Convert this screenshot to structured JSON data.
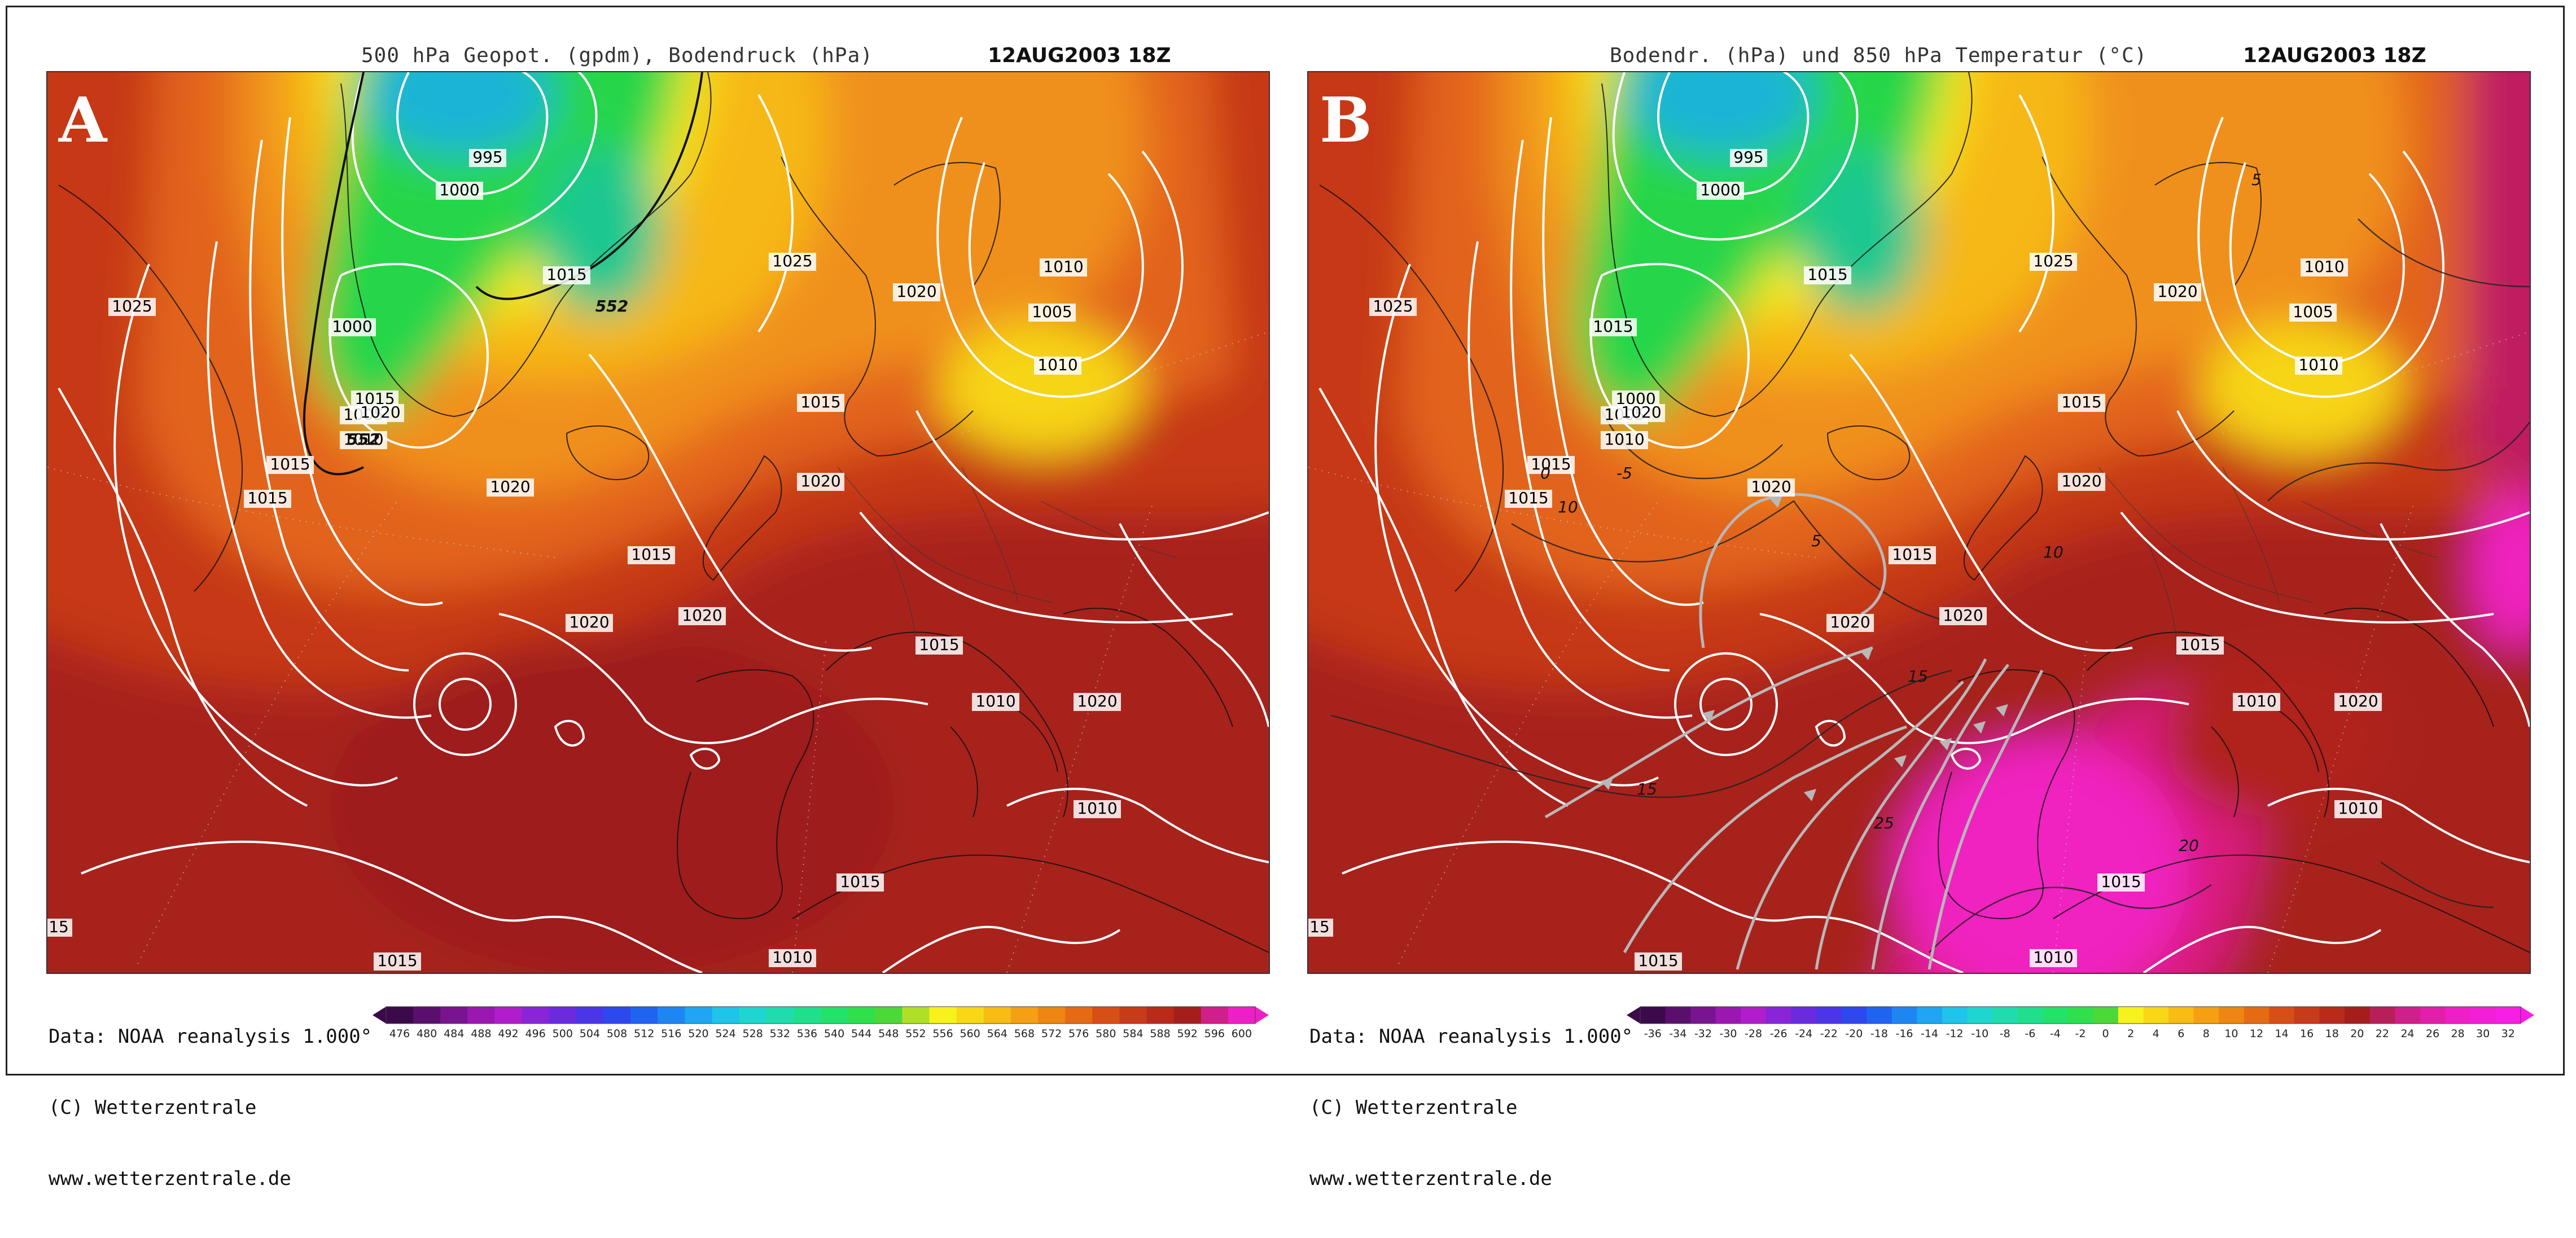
{
  "panels": [
    {
      "letter": "A",
      "title": "500 hPa Geopot. (gpdm), Bodendruck (hPa)",
      "timestamp": "12AUG2003 18Z",
      "credit_lines": [
        "Data: NOAA reanalysis 1.000°",
        "(C) Wetterzentrale",
        "www.wetterzentrale.de"
      ],
      "colorbar": {
        "ticks": [
          "476",
          "480",
          "484",
          "488",
          "492",
          "496",
          "500",
          "504",
          "508",
          "512",
          "516",
          "520",
          "524",
          "528",
          "532",
          "536",
          "540",
          "544",
          "548",
          "552",
          "556",
          "560",
          "564",
          "568",
          "572",
          "576",
          "580",
          "584",
          "588",
          "592",
          "596",
          "600"
        ],
        "colors": [
          "#3a0a4a",
          "#5a0f6e",
          "#7a1390",
          "#9a18b0",
          "#b01ecc",
          "#8a24d8",
          "#6a2ae0",
          "#4a36e8",
          "#2c48ee",
          "#1e64f0",
          "#1e86f2",
          "#1ea6f2",
          "#1ec4ea",
          "#1ed6d0",
          "#1edcae",
          "#1ee08c",
          "#22e26a",
          "#2ee04c",
          "#4cd838",
          "#b0e026",
          "#f6f21a",
          "#f8d814",
          "#f8bc12",
          "#f4a012",
          "#ee8612",
          "#e46a14",
          "#d84e16",
          "#c83a18",
          "#b82a1a",
          "#a41e1c",
          "#d01e8a",
          "#f01ec6"
        ]
      },
      "isobar_labels": [
        "995",
        "1000",
        "1015",
        "1015",
        "1000",
        "1005",
        "1010",
        "1015",
        "1020",
        "1015",
        "1020",
        "1015",
        "1020",
        "1020",
        "1025",
        "1025",
        "1020",
        "1010",
        "1005",
        "1010",
        "1015",
        "1020",
        "1015",
        "1010",
        "1020",
        "1015",
        "1015",
        "1010",
        "1010",
        "15"
      ],
      "height_labels": [
        "552",
        "552"
      ],
      "vector_overlay": false
    },
    {
      "letter": "B",
      "title": "Bodendr. (hPa) und 850 hPa Temperatur (°C)",
      "timestamp": "12AUG2003 18Z",
      "credit_lines": [
        "Data: NOAA reanalysis 1.000°",
        "(C) Wetterzentrale",
        "www.wetterzentrale.de"
      ],
      "colorbar": {
        "ticks": [
          "-36",
          "-34",
          "-32",
          "-30",
          "-28",
          "-26",
          "-24",
          "-22",
          "-20",
          "-18",
          "-16",
          "-14",
          "-12",
          "-10",
          "-8",
          "-6",
          "-4",
          "-2",
          "0",
          "2",
          "4",
          "6",
          "8",
          "10",
          "12",
          "14",
          "16",
          "18",
          "20",
          "22",
          "24",
          "26",
          "28",
          "30",
          "32"
        ],
        "colors": [
          "#3a0a4a",
          "#5a0f6e",
          "#7a1390",
          "#9a18b0",
          "#b01ecc",
          "#8a24d8",
          "#6a2ae0",
          "#4a36e8",
          "#2c48ee",
          "#1e64f0",
          "#1e86f2",
          "#1ea6f2",
          "#1ec4ea",
          "#1ed6d0",
          "#1edcae",
          "#1ee08c",
          "#22e26a",
          "#2ee04c",
          "#4cd838",
          "#f6f21a",
          "#f8d814",
          "#f8bc12",
          "#f4a012",
          "#ee8612",
          "#e46a14",
          "#d84e16",
          "#c83a18",
          "#b82a1a",
          "#a41e1c",
          "#b81e5a",
          "#d01e8a",
          "#e21eaa",
          "#f01ec6",
          "#f41ed6",
          "#f81ee4"
        ]
      },
      "isobar_labels": [
        "995",
        "1000",
        "1015",
        "1000",
        "1015",
        "1005",
        "1010",
        "1015",
        "1020",
        "1015",
        "1020",
        "1015",
        "1020",
        "1020",
        "1025",
        "1025",
        "1020",
        "1010",
        "1005",
        "1010",
        "1015",
        "1020",
        "1015",
        "1010",
        "1020",
        "1015",
        "1015",
        "1010",
        "1010",
        "15"
      ],
      "temp_labels": [
        "-5",
        "0",
        "5",
        "10",
        "5",
        "10",
        "15",
        "20",
        "25",
        "15"
      ],
      "vector_overlay": true
    }
  ]
}
